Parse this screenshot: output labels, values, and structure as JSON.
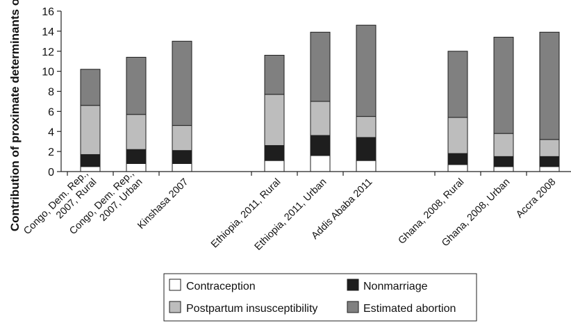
{
  "chart_data": {
    "type": "bar",
    "stacked": true,
    "ylabel": "Contribution of proximate determinants of fertility",
    "ylim": [
      0,
      16
    ],
    "yticks": [
      0,
      2,
      4,
      6,
      8,
      10,
      12,
      14,
      16
    ],
    "categories": [
      "Congo, Dem. Rep., 2007, Rural",
      "Congo, Dem. Rep., 2007, Urban",
      "Kinshasa 2007",
      "Ethiopia, 2011, Rural",
      "Ethiopia, 2011, Urban",
      "Addis Ababa 2011",
      "Ghana, 2008, Rural",
      "Ghana, 2008, Urban",
      "Accra 2008"
    ],
    "category_lines": [
      [
        "Congo, Dem. Rep.,",
        "2007, Rural"
      ],
      [
        "Congo, Dem. Rep.,",
        "2007, Urban"
      ],
      [
        "Kinshasa 2007"
      ],
      [
        "Ethiopia, 2011, Rural"
      ],
      [
        "Ethiopia, 2011, Urban"
      ],
      [
        "Addis Ababa 2011"
      ],
      [
        "Ghana, 2008, Rural"
      ],
      [
        "Ghana, 2008, Urban"
      ],
      [
        "Accra 2008"
      ]
    ],
    "series": [
      {
        "name": "Contraception",
        "color": "#ffffff",
        "values": [
          0.5,
          0.8,
          0.8,
          1.1,
          1.6,
          1.1,
          0.7,
          0.5,
          0.5
        ]
      },
      {
        "name": "Nonmarriage",
        "color": "#1e1e1e",
        "values": [
          1.2,
          1.4,
          1.3,
          1.5,
          2.0,
          2.3,
          1.1,
          1.0,
          1.0
        ]
      },
      {
        "name": "Postpartum insusceptibility",
        "color": "#bdbdbd",
        "values": [
          4.9,
          3.5,
          2.5,
          5.1,
          3.4,
          2.1,
          3.6,
          2.3,
          1.7
        ]
      },
      {
        "name": "Estimated abortion",
        "color": "#808080",
        "values": [
          3.6,
          5.7,
          8.4,
          3.9,
          6.9,
          9.1,
          6.6,
          9.6,
          10.7
        ]
      }
    ],
    "grid": false,
    "legend_position": "bottom"
  }
}
